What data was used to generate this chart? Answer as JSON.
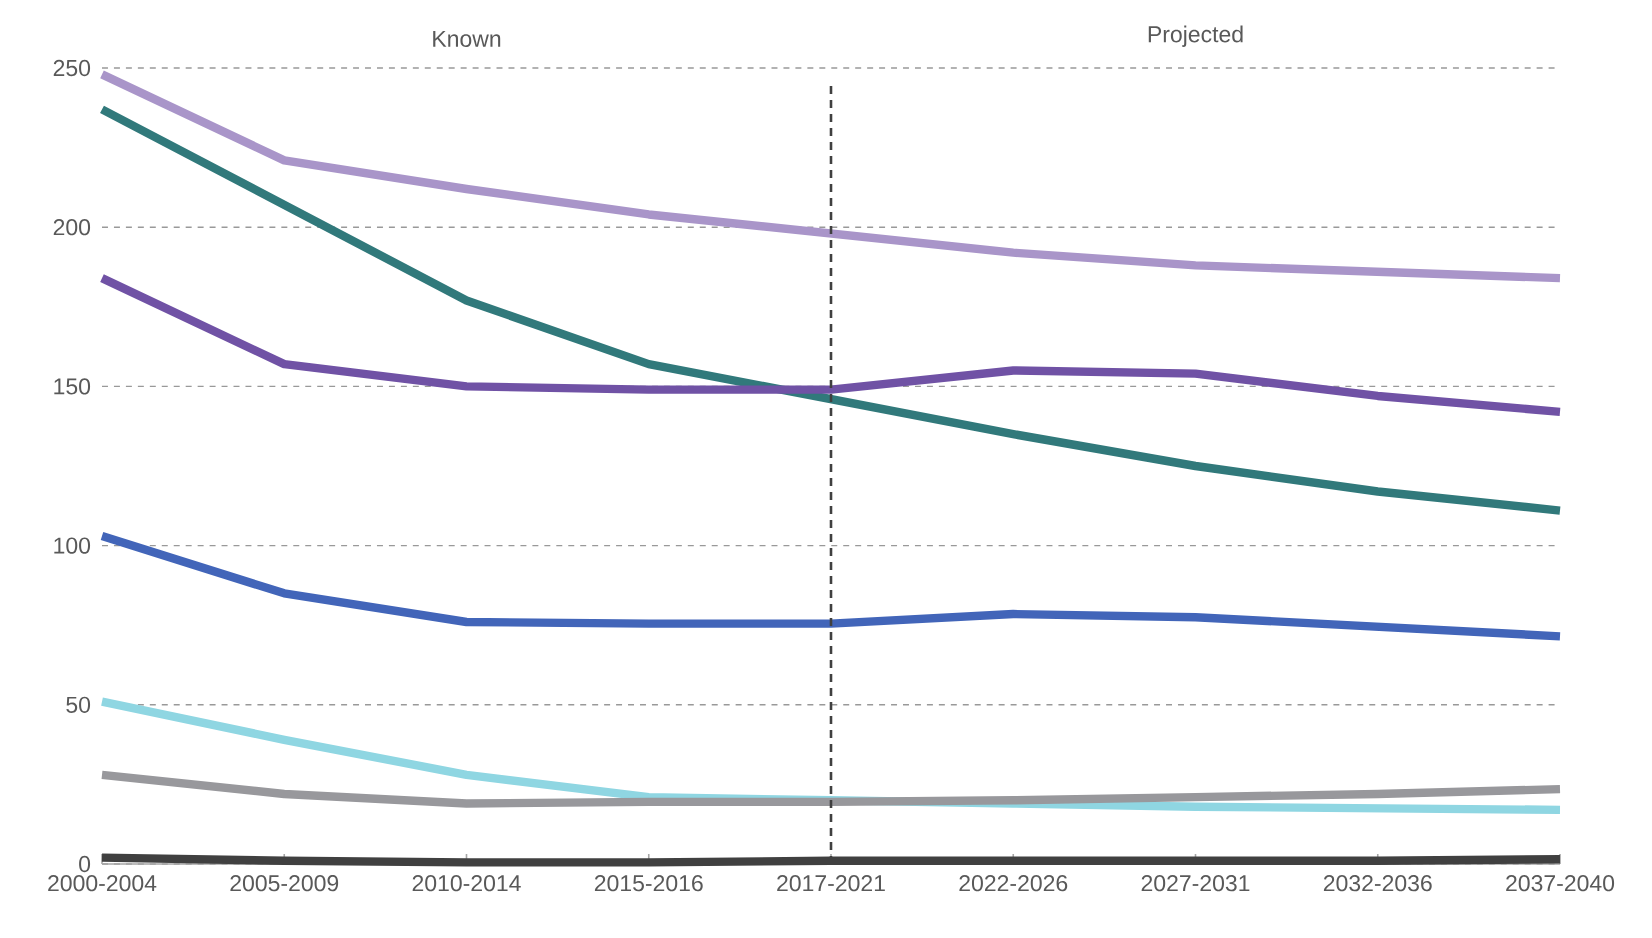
{
  "chart_data": {
    "type": "line",
    "categories": [
      "2000-2004",
      "2005-2009",
      "2010-2014",
      "2015-2016",
      "2017-2021",
      "2022-2026",
      "2027-2031",
      "2032-2036",
      "2037-2040"
    ],
    "series": [
      {
        "color": "#a995c9",
        "values": [
          248,
          221,
          212,
          204,
          198,
          192,
          188,
          186,
          184
        ]
      },
      {
        "color": "#31797b",
        "values": [
          237,
          207,
          177,
          157,
          146,
          135,
          125,
          117,
          111
        ]
      },
      {
        "color": "#7052a5",
        "values": [
          184,
          157,
          150,
          149,
          149,
          155,
          154,
          147,
          142
        ]
      },
      {
        "color": "#4265b9",
        "values": [
          103,
          85,
          76,
          75.5,
          75.5,
          78.5,
          77.5,
          74.5,
          71.5
        ]
      },
      {
        "color": "#8fd6e2",
        "values": [
          51,
          39,
          28,
          21,
          20,
          19,
          18,
          17.5,
          17
        ]
      },
      {
        "color": "#98989c",
        "values": [
          28,
          22,
          19,
          19.5,
          19.5,
          20,
          21,
          22,
          23.5
        ]
      },
      {
        "color": "#404040",
        "values": [
          2,
          1,
          0.5,
          0.5,
          1,
          1,
          1,
          1,
          1.5
        ]
      }
    ],
    "ylim": [
      0,
      250
    ],
    "yticks": [
      0,
      50,
      100,
      150,
      200,
      250
    ],
    "grid": "y",
    "marker": "none",
    "line_style": "solid",
    "ref_lines": [
      {
        "axis": "x",
        "value": "2017-2021",
        "color": "#404040",
        "line_style": "dashed"
      }
    ],
    "annotations": [
      "Known",
      "Projected"
    ]
  }
}
